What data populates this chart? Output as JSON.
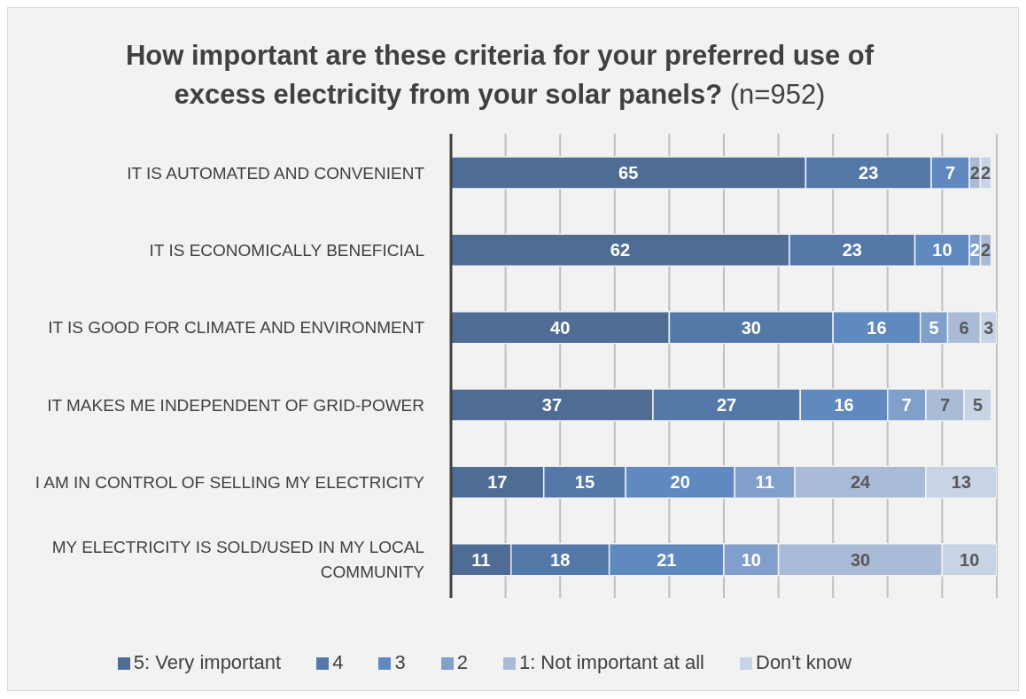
{
  "chart_data": {
    "type": "bar",
    "orientation": "horizontal",
    "stacked": true,
    "title": "How important are these criteria for your preferred use of excess electricity from your solar panels?",
    "subtitle": "(n=952)",
    "categories": [
      "IT IS AUTOMATED AND CONVENIENT",
      "IT IS ECONOMICALLY BENEFICIAL",
      "IT IS GOOD FOR CLIMATE AND ENVIRONMENT",
      "IT MAKES ME INDEPENDENT OF GRID-POWER",
      "I AM IN CONTROL OF SELLING MY ELECTRICITY",
      "MY ELECTRICITY IS SOLD/USED IN MY LOCAL COMMUNITY"
    ],
    "series": [
      {
        "name": "5: Very important",
        "color": "#4f6d94",
        "values": [
          65,
          62,
          40,
          37,
          17,
          11
        ]
      },
      {
        "name": "4",
        "color": "#5479a8",
        "values": [
          23,
          23,
          30,
          27,
          15,
          18
        ]
      },
      {
        "name": "3",
        "color": "#5f89bf",
        "values": [
          7,
          10,
          16,
          16,
          20,
          21
        ]
      },
      {
        "name": "2",
        "color": "#819fcb",
        "values": [
          null,
          2,
          5,
          7,
          11,
          10
        ]
      },
      {
        "name": "1: Not important at all",
        "color": "#aabbd8",
        "values": [
          2,
          2,
          6,
          7,
          24,
          30
        ]
      },
      {
        "name": "Don't know",
        "color": "#c8d3e6",
        "values": [
          2,
          null,
          3,
          5,
          13,
          10
        ]
      }
    ],
    "xlim": [
      0,
      100
    ],
    "xticks": [
      {
        "value": 0,
        "label": null
      },
      {
        "value": 10,
        "label": null
      },
      {
        "value": 20,
        "label": null
      },
      {
        "value": 30,
        "label": null
      },
      {
        "value": 40,
        "label": null
      },
      {
        "value": 50,
        "label": null
      },
      {
        "value": 60,
        "label": null
      },
      {
        "value": 70,
        "label": null
      },
      {
        "value": 80,
        "label": null
      },
      {
        "value": 90,
        "label": null
      },
      {
        "value": 100,
        "label": null
      }
    ],
    "tick_labels": "y",
    "grid": "x",
    "legend": "bottom",
    "data_labels": true
  }
}
